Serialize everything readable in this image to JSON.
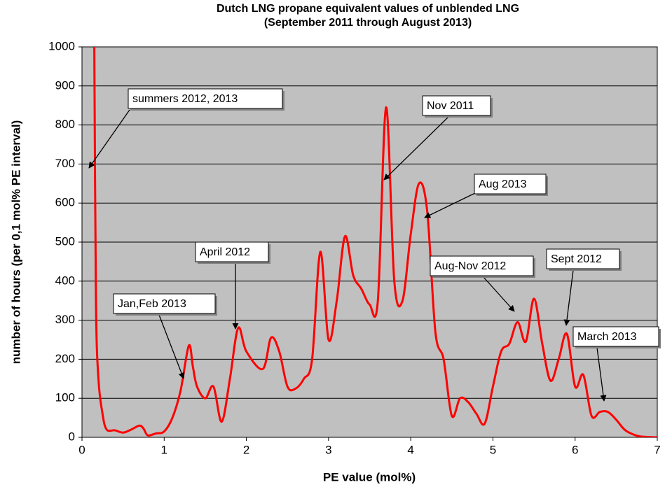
{
  "chart_data": {
    "type": "line",
    "title": "Dutch LNG propane equivalent values of unblended  LNG",
    "subtitle": "(September 2011 through  August 2013)",
    "x_label": "PE value (mol%)",
    "y_label": "number of hours (per 0,1 mol% PE interval)",
    "xlim": [
      0,
      7
    ],
    "ylim": [
      0,
      1000
    ],
    "xticks": [
      0,
      1,
      2,
      3,
      4,
      5,
      6,
      7
    ],
    "yticks": [
      0,
      100,
      200,
      300,
      400,
      500,
      600,
      700,
      800,
      900,
      1000
    ],
    "grid": true,
    "series": [
      {
        "color": "#ff0000",
        "x": [
          0.15,
          0.17,
          0.2,
          0.25,
          0.3,
          0.4,
          0.5,
          0.6,
          0.7,
          0.75,
          0.8,
          0.9,
          1.0,
          1.1,
          1.2,
          1.3,
          1.35,
          1.4,
          1.5,
          1.6,
          1.7,
          1.8,
          1.9,
          2.0,
          2.2,
          2.3,
          2.4,
          2.5,
          2.6,
          2.7,
          2.8,
          2.9,
          3.0,
          3.1,
          3.2,
          3.3,
          3.4,
          3.5,
          3.6,
          3.7,
          3.8,
          3.9,
          4.0,
          4.1,
          4.2,
          4.3,
          4.4,
          4.5,
          4.6,
          4.7,
          4.8,
          4.9,
          5.0,
          5.1,
          5.2,
          5.3,
          5.4,
          5.5,
          5.6,
          5.7,
          5.8,
          5.9,
          6.0,
          6.1,
          6.2,
          6.3,
          6.4,
          6.5,
          6.6,
          6.7,
          6.8,
          7.0
        ],
        "values": [
          1000,
          350,
          150,
          60,
          20,
          18,
          12,
          20,
          30,
          22,
          5,
          10,
          15,
          50,
          120,
          235,
          180,
          130,
          100,
          130,
          40,
          150,
          280,
          220,
          175,
          255,
          220,
          130,
          125,
          150,
          200,
          475,
          250,
          350,
          515,
          415,
          380,
          340,
          350,
          845,
          400,
          350,
          520,
          650,
          580,
          270,
          200,
          55,
          100,
          90,
          60,
          35,
          130,
          220,
          240,
          295,
          245,
          355,
          240,
          145,
          200,
          265,
          130,
          160,
          55,
          65,
          65,
          45,
          20,
          8,
          2,
          0
        ]
      }
    ],
    "annotations": [
      "summers 2012, 2013",
      "Nov 2011",
      "Aug 2013",
      "April 2012",
      "Jan,Feb 2013",
      "Aug-Nov 2012",
      "Sept 2012",
      "March 2013"
    ]
  }
}
